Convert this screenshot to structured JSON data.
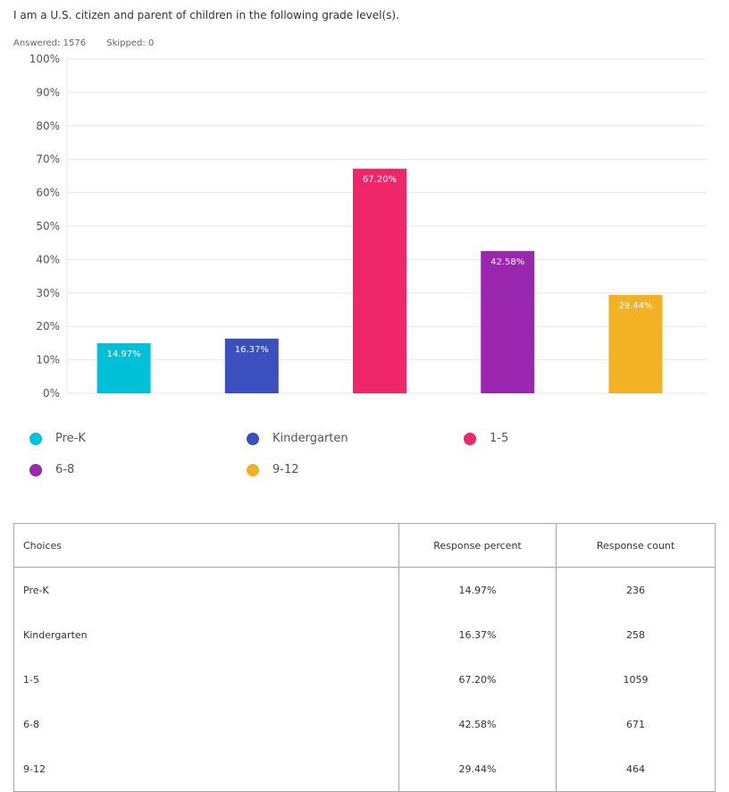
{
  "question": "I am a U.S. citizen and parent of children in the following grade level(s).",
  "stats": {
    "answered": "Answered: 1576",
    "skipped": "Skipped: 0"
  },
  "chart_data": {
    "type": "bar",
    "categories": [
      "Pre-K",
      "Kindergarten",
      "1-5",
      "6-8",
      "9-12"
    ],
    "values": [
      14.97,
      16.37,
      67.2,
      42.58,
      29.44
    ],
    "value_labels": [
      "14.97%",
      "16.37%",
      "67.20%",
      "42.58%",
      "29.44%"
    ],
    "colors": [
      "#00c0d8",
      "#3b4fbe",
      "#f0266b",
      "#9b27b0",
      "#f3b224"
    ],
    "ylim": [
      0,
      100
    ],
    "yticks": [
      "0%",
      "10%",
      "20%",
      "30%",
      "40%",
      "50%",
      "60%",
      "70%",
      "80%",
      "90%",
      "100%"
    ],
    "grid": true,
    "legend": "bottom"
  },
  "table": {
    "headers": [
      "Choices",
      "Response percent",
      "Response count"
    ],
    "rows": [
      [
        "Pre-K",
        "14.97%",
        "236"
      ],
      [
        "Kindergarten",
        "16.37%",
        "258"
      ],
      [
        "1-5",
        "67.20%",
        "1059"
      ],
      [
        "6-8",
        "42.58%",
        "671"
      ],
      [
        "9-12",
        "29.44%",
        "464"
      ]
    ]
  }
}
